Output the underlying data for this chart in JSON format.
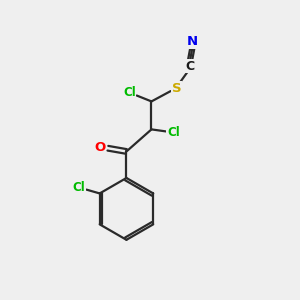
{
  "background_color": "#efefef",
  "bond_color": "#2a2a2a",
  "atom_colors": {
    "Cl": "#00bb00",
    "O": "#ff0000",
    "S": "#ccaa00",
    "N": "#0000ee",
    "C": "#1a1a1a"
  },
  "figsize": [
    3.0,
    3.0
  ],
  "dpi": 100
}
